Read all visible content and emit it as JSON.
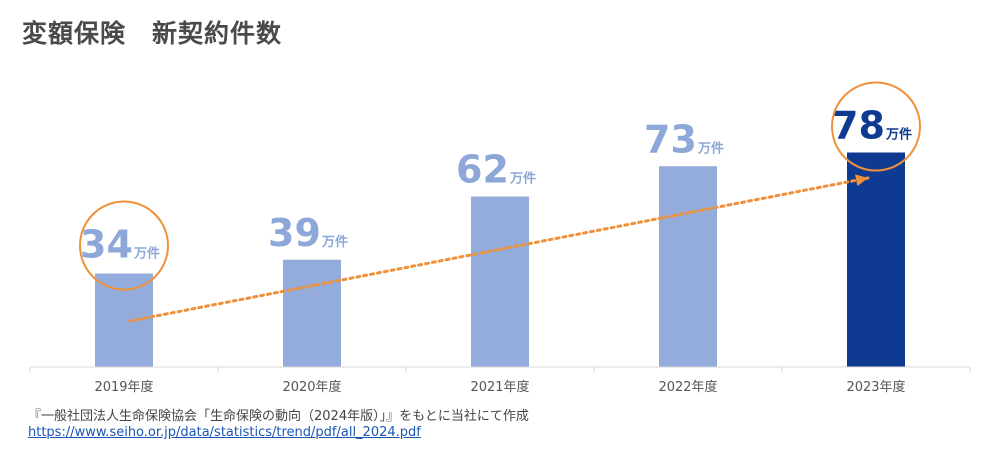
{
  "title": "変額保険　新契約件数",
  "source_note": "『一般社団法人生命保険協会「生命保険の動向（2024年版）」』をもとに当社にて作成",
  "source_url": "https://www.seiho.or.jp/data/statistics/trend/pdf/all_2024.pdf",
  "colors": {
    "bar": "#93acdb",
    "bar_highlight": "#0e3b91",
    "trend": "#f0913a",
    "circle": "#f0913a",
    "label": "#8da8d8",
    "label_highlight": "#0e3b91"
  },
  "chart_data": {
    "type": "bar",
    "title": "変額保険　新契約件数",
    "categories": [
      "2019年度",
      "2020年度",
      "2021年度",
      "2022年度",
      "2023年度"
    ],
    "values": [
      34,
      39,
      62,
      73,
      78
    ],
    "data_labels": [
      "34",
      "39",
      "62",
      "73",
      "78"
    ],
    "unit": "万件",
    "highlighted_category": "2023年度",
    "circled_categories": [
      "2019年度",
      "2023年度"
    ],
    "trend_arrow": {
      "from": "2019年度",
      "to": "2023年度"
    }
  }
}
